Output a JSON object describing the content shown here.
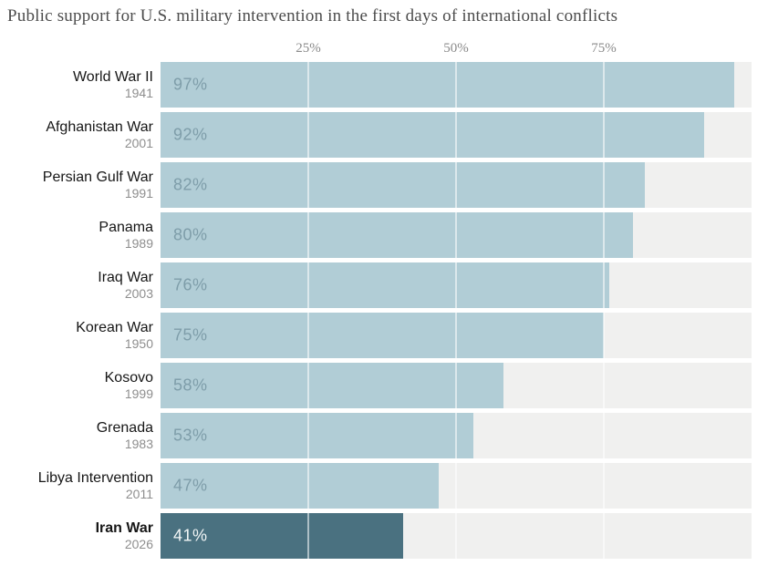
{
  "chart_data": {
    "type": "bar",
    "orientation": "horizontal",
    "title": "Public support for U.S. military intervention in the first days of international conflicts",
    "categories": [
      "World War II",
      "Afghanistan War",
      "Persian Gulf War",
      "Panama",
      "Iraq War",
      "Korean War",
      "Kosovo",
      "Grenada",
      "Libya Intervention",
      "Iran War"
    ],
    "years": [
      "1941",
      "2001",
      "1991",
      "1989",
      "2003",
      "1950",
      "1999",
      "1983",
      "2011",
      "2026"
    ],
    "values": [
      97,
      92,
      82,
      80,
      76,
      75,
      58,
      53,
      47,
      41
    ],
    "value_labels": [
      "97%",
      "92%",
      "82%",
      "80%",
      "76%",
      "75%",
      "58%",
      "53%",
      "47%",
      "41%"
    ],
    "xlabel": "",
    "ylabel": "",
    "xlim": [
      0,
      100
    ],
    "gridlines": [
      25,
      50,
      75
    ],
    "grid": "on",
    "legend": "none",
    "highlighted_category": "Iran War"
  },
  "axis": {
    "ticks": [
      "25%",
      "50%",
      "75%"
    ],
    "tick_values": [
      25,
      50,
      75
    ]
  },
  "colors": {
    "bar": "#b1cdd6",
    "bar_highlight": "#4a7180",
    "track": "#f0f0ef",
    "value_label": "#7e9da9",
    "value_label_highlight": "#f2f6f6",
    "title_text": "#4c4c4c",
    "tick_text": "#8a8a8a",
    "category_text": "#161616",
    "year_text": "#8e8e8e",
    "gridline": "rgba(255,255,255,0.55)"
  }
}
